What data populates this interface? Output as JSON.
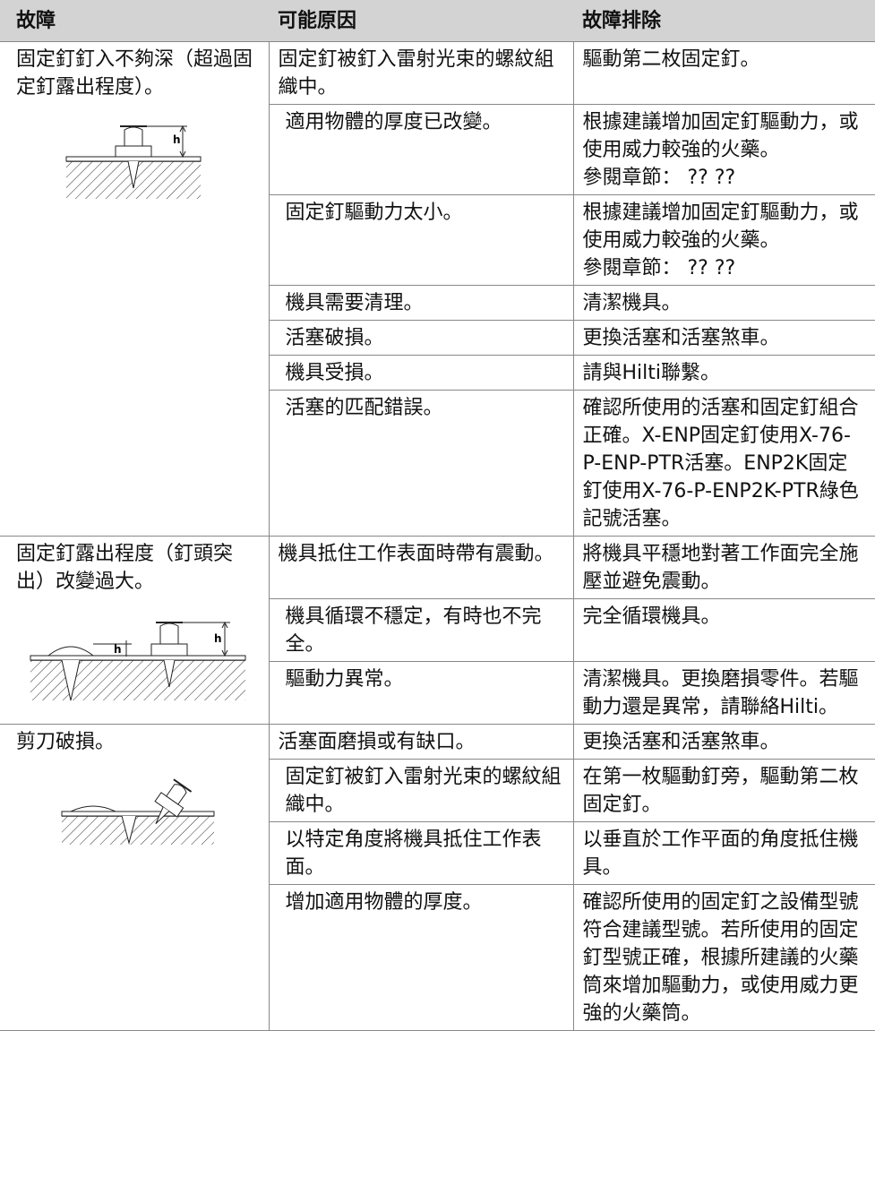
{
  "table": {
    "headers": [
      "故障",
      "可能原因",
      "故障排除"
    ],
    "groups": [
      {
        "fault": "固定釘釘入不夠深（超過固定釘露出程度）。",
        "figure_labels": [
          "h"
        ],
        "rows": [
          {
            "cause": "固定釘被釘入雷射光束的螺紋組織中。",
            "solution": [
              "驅動第二枚固定釘。"
            ]
          },
          {
            "cause": "適用物體的厚度已改變。",
            "solution": [
              "根據建議增加固定釘驅動力，或使用威力較強的火藥。",
              "參閱章節： ?? ??"
            ]
          },
          {
            "cause": "固定釘驅動力太小。",
            "solution": [
              "根據建議增加固定釘驅動力，或使用威力較強的火藥。",
              "參閱章節： ?? ??"
            ]
          },
          {
            "cause": "機具需要清理。",
            "solution": [
              "清潔機具。"
            ]
          },
          {
            "cause": "活塞破損。",
            "solution": [
              "更換活塞和活塞煞車。"
            ]
          },
          {
            "cause": "機具受損。",
            "solution": [
              "請與Hilti聯繫。"
            ]
          },
          {
            "cause": "活塞的匹配錯誤。",
            "solution": [
              "確認所使用的活塞和固定釘組合正確。X-ENP固定釘使用X-76-P-ENP-PTR活塞。ENP2K固定釘使用X-76-P-ENP2K-PTR綠色記號活塞。"
            ]
          }
        ]
      },
      {
        "fault": "固定釘露出程度（釘頭突出）改變過大。",
        "figure_labels": [
          "h",
          "h"
        ],
        "rows": [
          {
            "cause": "機具抵住工作表面時帶有震動。",
            "solution": [
              "將機具平穩地對著工作面完全施壓並避免震動。"
            ]
          },
          {
            "cause": "機具循環不穩定，有時也不完全。",
            "solution": [
              "完全循環機具。"
            ]
          },
          {
            "cause": "驅動力異常。",
            "solution": [
              "清潔機具。更換磨損零件。若驅動力還是異常，請聯絡Hilti。"
            ]
          }
        ]
      },
      {
        "fault": "剪刀破損。",
        "figure_labels": [],
        "rows": [
          {
            "cause": "活塞面磨損或有缺口。",
            "solution": [
              "更換活塞和活塞煞車。"
            ]
          },
          {
            "cause": "固定釘被釘入雷射光束的螺紋組織中。",
            "solution": [
              "在第一枚驅動釘旁，驅動第二枚固定釘。"
            ]
          },
          {
            "cause": "以特定角度將機具抵住工作表面。",
            "solution": [
              "以垂直於工作平面的角度抵住機具。"
            ]
          },
          {
            "cause": "增加適用物體的厚度。",
            "solution": [
              "確認所使用的固定釘之設備型號符合建議型號。若所使用的固定釘型號正確，根據所建議的火藥筒來增加驅動力，或使用威力更強的火藥筒。"
            ]
          }
        ]
      }
    ]
  }
}
